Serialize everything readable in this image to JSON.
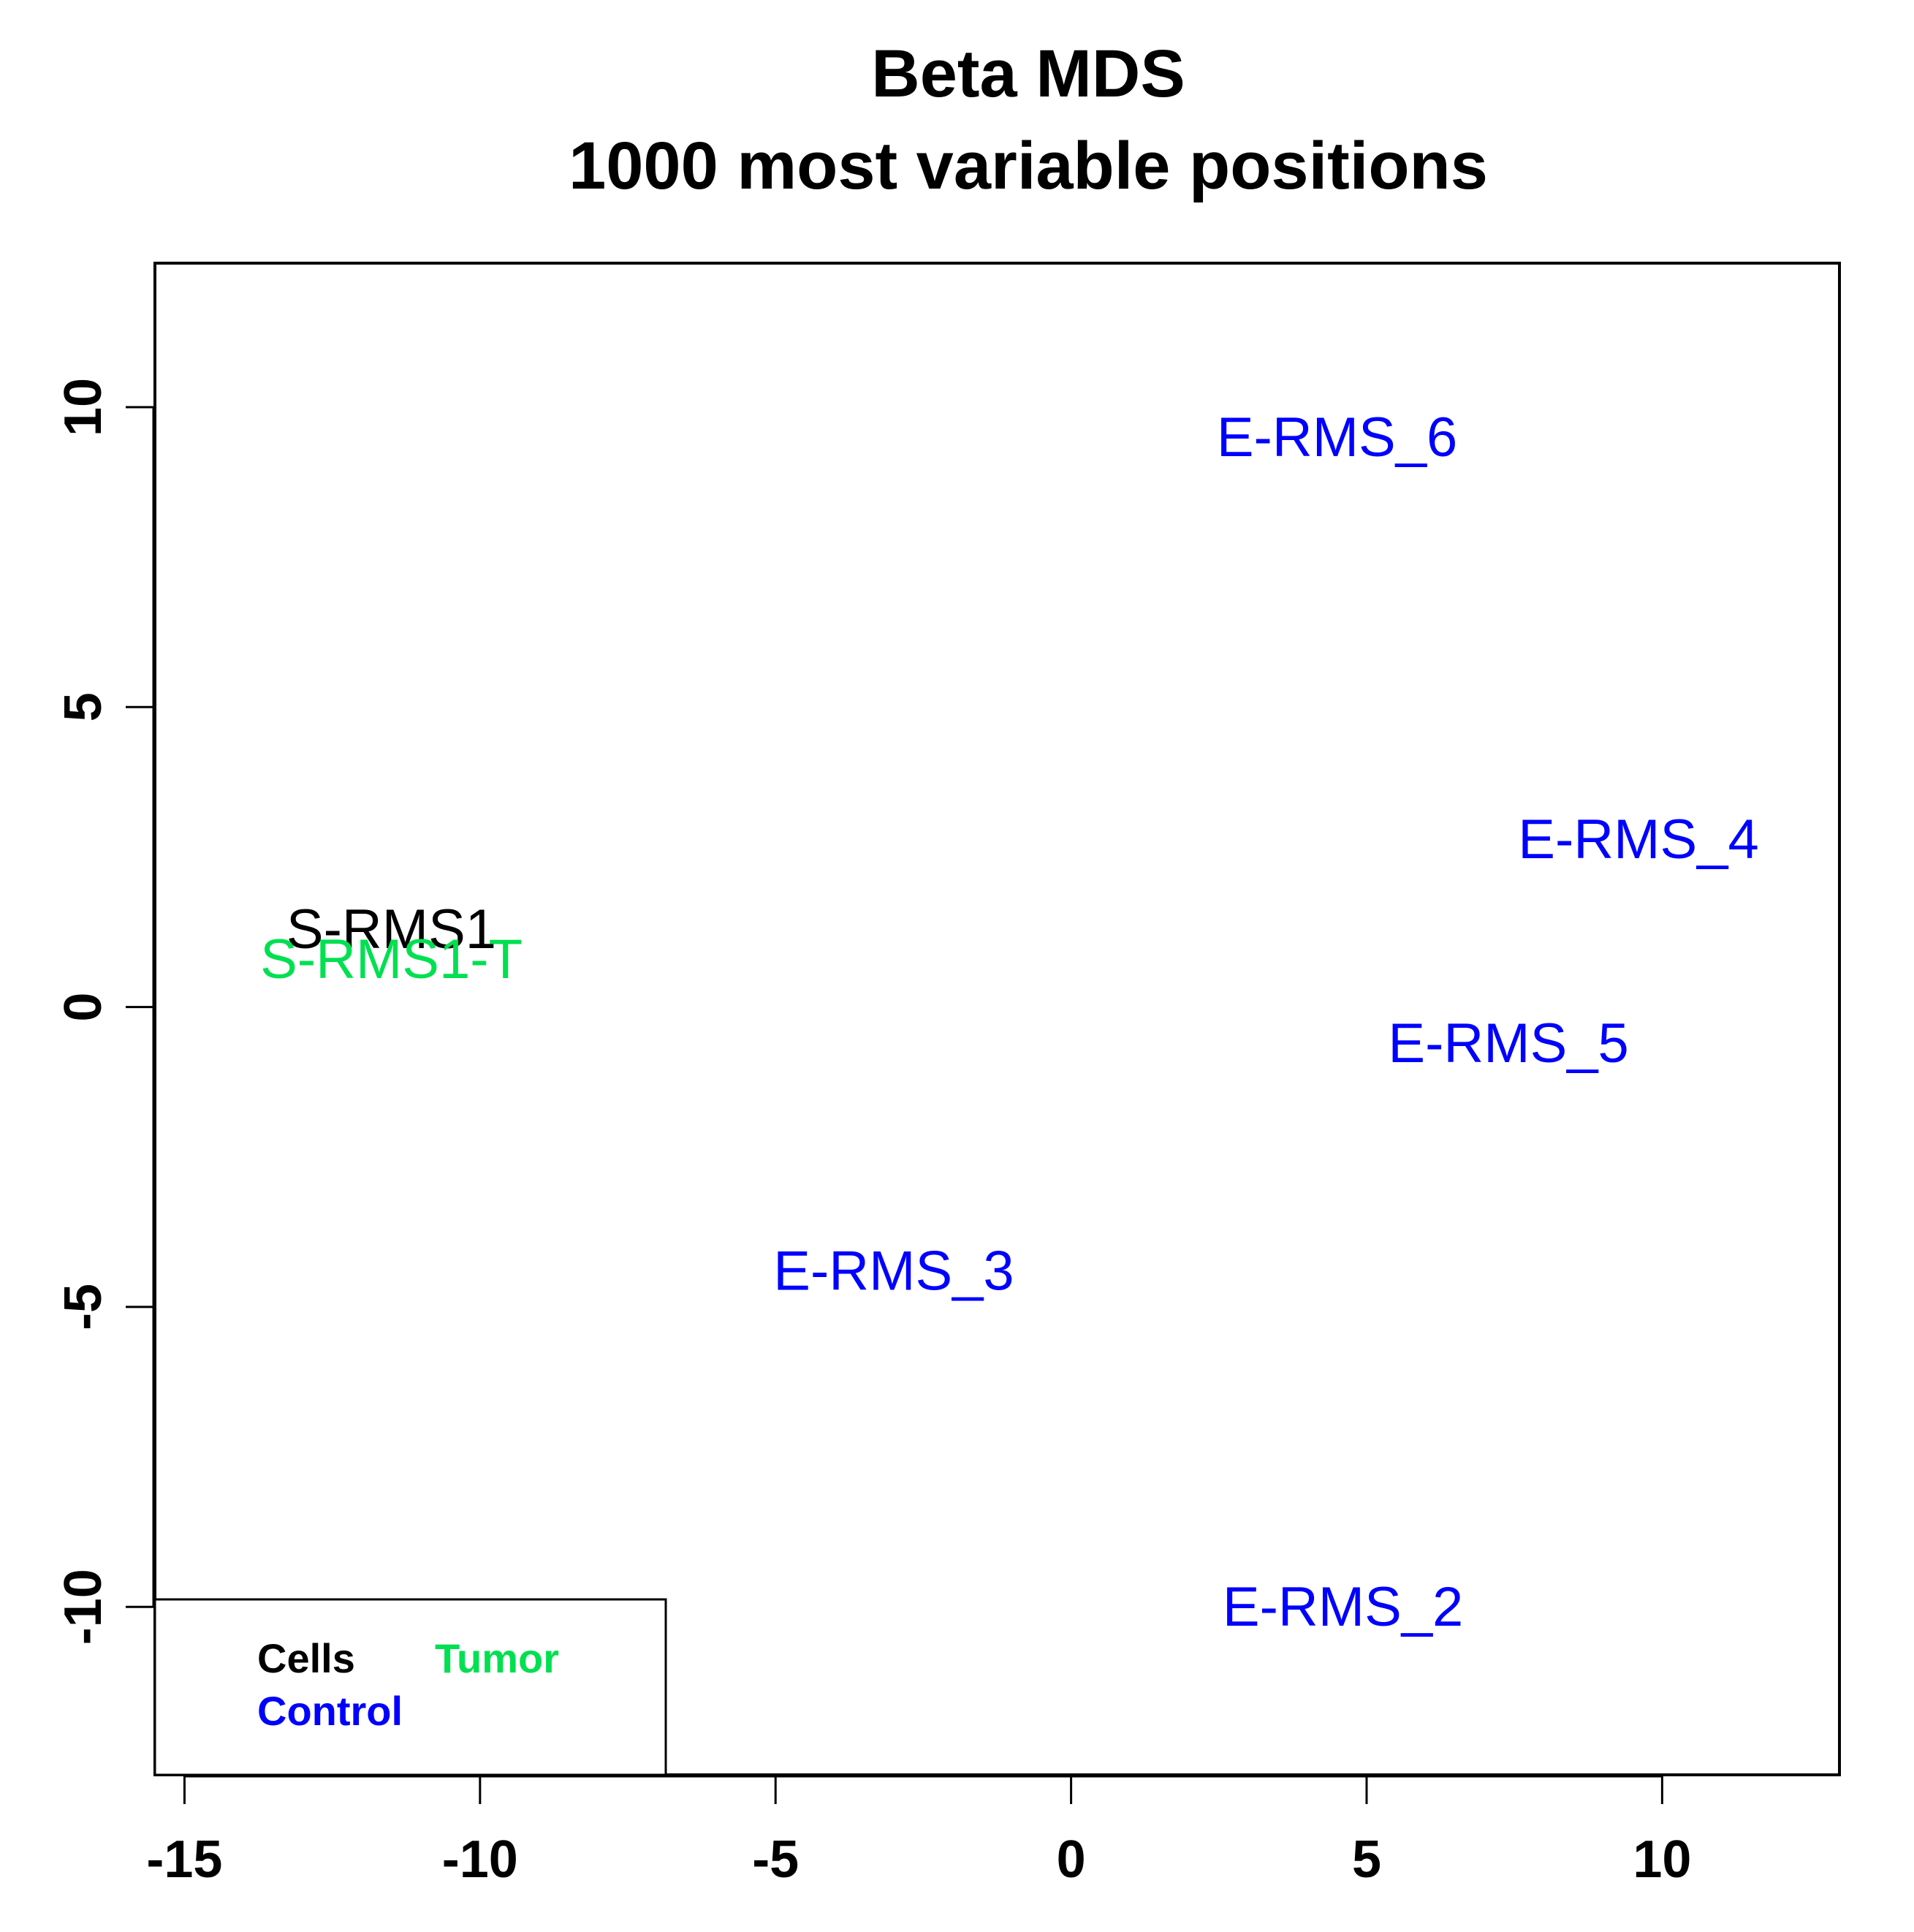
{
  "chart_data": {
    "type": "scatter",
    "title": "Beta MDS",
    "subtitle": "1000 most variable positions",
    "xlabel": "",
    "ylabel": "",
    "xlim": [
      -15.5,
      13
    ],
    "ylim": [
      -12.8,
      12.4
    ],
    "x_ticks": [
      "-15",
      "-10",
      "-5",
      "0",
      "5",
      "10"
    ],
    "y_ticks": [
      "-10",
      "-5",
      "0",
      "5",
      "10"
    ],
    "grid": false,
    "legend_position": "bottom-left",
    "points": [
      {
        "label": "S-RMS1",
        "x": -11.5,
        "y": 1.3,
        "color": "#000000"
      },
      {
        "label": "S-RMS1-T",
        "x": -11.5,
        "y": 0.8,
        "color": "#00e050"
      },
      {
        "label": "E-RMS_6",
        "x": 4.5,
        "y": 9.5,
        "color": "#0000ff"
      },
      {
        "label": "E-RMS_4",
        "x": 9.6,
        "y": 2.8,
        "color": "#0000ff"
      },
      {
        "label": "E-RMS_5",
        "x": 7.4,
        "y": -0.6,
        "color": "#0000ff"
      },
      {
        "label": "E-RMS_3",
        "x": -3.0,
        "y": -4.4,
        "color": "#0000ff"
      },
      {
        "label": "E-RMS_2",
        "x": 4.6,
        "y": -10.0,
        "color": "#0000ff"
      }
    ],
    "legend": [
      {
        "label": "Cells",
        "color": "#000000"
      },
      {
        "label": "Tumor",
        "color": "#00e050"
      },
      {
        "label": "Control",
        "color": "#0000ff"
      }
    ]
  }
}
